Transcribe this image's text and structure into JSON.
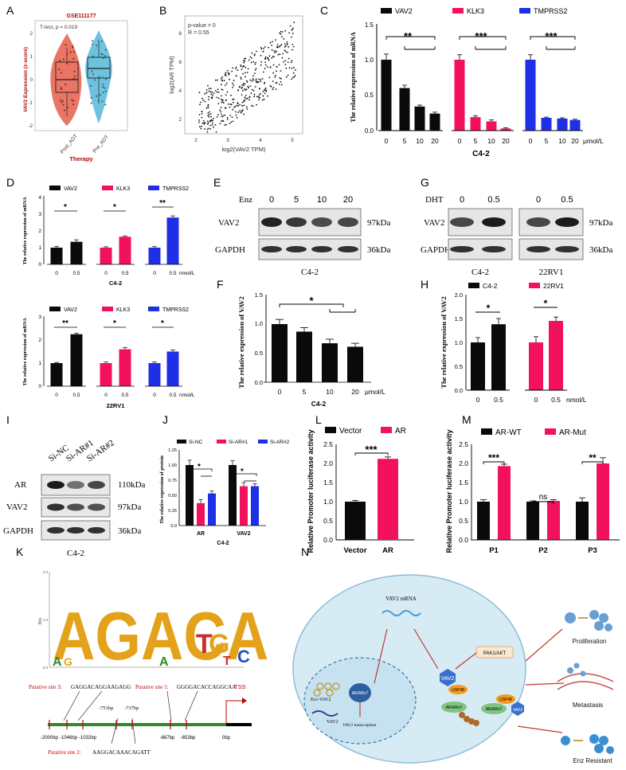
{
  "colors": {
    "black": "#0a0a0a",
    "pink": "#f2115f",
    "blue": "#1f2fe6",
    "violin_red": "#e3523f",
    "violin_blue": "#4ab3d6",
    "green_bar": "#2d8a25",
    "cell_fill": "#d7ebf5",
    "gse_red": "#c00000"
  },
  "panel_labels": [
    "A",
    "B",
    "C",
    "D",
    "E",
    "F",
    "G",
    "H",
    "I",
    "J",
    "K",
    "L",
    "M",
    "N"
  ],
  "panelA": {
    "gse": "GSE111177",
    "test": "T-test, p = 0.019",
    "ylabel": "VAV2 Expression (z-score)",
    "xlabel": "Therapy",
    "groups": [
      "Post_ADT",
      "Pre_ADT"
    ],
    "yticks": [
      "-2",
      "-1",
      "0",
      "1",
      "2"
    ]
  },
  "panelB": {
    "stat1": "p-value = 0",
    "stat2": "R = 0.55",
    "xlabel": "log2(VAV2 TPM)",
    "ylabel": "log2(AR TPM)",
    "xticks": [
      "2",
      "3",
      "4",
      "5"
    ],
    "yticks": [
      "2",
      "4",
      "6",
      "8"
    ]
  },
  "panelC": {
    "ylabel": "The relative expression of mRNA",
    "legend": [
      "VAV2",
      "KLK3",
      "TMPRSS2"
    ],
    "doses": [
      "0",
      "5",
      "10",
      "20"
    ],
    "unit": "μmol/L",
    "cell": "C4-2",
    "yticks": [
      "0.0",
      "0.5",
      "1.0",
      "1.5"
    ],
    "sig": [
      "**",
      "***",
      "***"
    ]
  },
  "panelD": {
    "ylabel": "The relative expression of mRNA",
    "legend": [
      "VAV2",
      "KLK3",
      "TMPRSS2"
    ],
    "doses": [
      "0",
      "0.5"
    ],
    "unit": "nmol/L",
    "top_cell": "C4-2",
    "bottom_cell": "22RV1",
    "top_yticks": [
      "0",
      "1",
      "2",
      "3",
      "4"
    ],
    "bottom_yticks": [
      "0",
      "1",
      "2",
      "3"
    ],
    "top_sig": [
      "*",
      "*",
      "**"
    ],
    "bottom_sig": [
      "**",
      "*",
      "*"
    ]
  },
  "panelE": {
    "enz": "Enz",
    "doses": [
      "0",
      "5",
      "10",
      "20"
    ],
    "rows": [
      "VAV2",
      "GAPDH"
    ],
    "kda": [
      "97kDa",
      "36kDa"
    ],
    "cell": "C4-2"
  },
  "panelF": {
    "ylabel": "The relative expression of VAV2",
    "doses": [
      "0",
      "5",
      "10",
      "20"
    ],
    "unit": "μmol/L",
    "cell": "C4-2",
    "yticks": [
      "0.0",
      "0.5",
      "1.0",
      "1.5"
    ],
    "sig": "*"
  },
  "panelG": {
    "dht": "DHT",
    "doses": [
      "0",
      "0.5",
      "0",
      "0.5"
    ],
    "rows": [
      "VAV2",
      "GAPDH"
    ],
    "kda": [
      "97kDa",
      "36kDa"
    ],
    "cells": [
      "C4-2",
      "22RV1"
    ]
  },
  "panelH": {
    "ylabel": "The relative expression of VAV2",
    "legend": [
      "C4-2",
      "22RV1"
    ],
    "doses": [
      "0",
      "0.5",
      "0",
      "0.5"
    ],
    "unit": "nmol/L",
    "yticks": [
      "0.0",
      "0.5",
      "1.0",
      "1.5",
      "2.0"
    ],
    "sig": [
      "*",
      "*"
    ]
  },
  "panelI": {
    "lanes": [
      "Si-NC",
      "Si-AR#1",
      "Si-AR#2"
    ],
    "rows": [
      "AR",
      "VAV2",
      "GAPDH"
    ],
    "kda": [
      "110kDa",
      "97kDa",
      "36kDa"
    ],
    "cell": "C4-2"
  },
  "panelJ": {
    "ylabel": "The relative expression of protein",
    "legend": [
      "Si-NC",
      "Si-AR#1",
      "Si-AR#2"
    ],
    "groups": [
      "AR",
      "VAV2"
    ],
    "cell": "C4-2",
    "yticks": [
      "0.0",
      "0.25",
      "0.50",
      "0.75",
      "1.00",
      "1.25"
    ],
    "sig": [
      "*",
      "*"
    ]
  },
  "panelL": {
    "ylabel": "Relative Promoter luciferase activity",
    "legend": [
      "Vector",
      "AR"
    ],
    "categories": [
      "Vector",
      "AR"
    ],
    "yticks": [
      "0.0",
      "0.5",
      "1.0",
      "1.5",
      "2.0",
      "2.5"
    ],
    "sig": "***"
  },
  "panelM": {
    "ylabel": "Relative Promoter luciferase activity",
    "legend": [
      "AR-WT",
      "AR-Mut"
    ],
    "categories": [
      "P1",
      "P2",
      "P3"
    ],
    "yticks": [
      "0.0",
      "0.5",
      "1.0",
      "1.5",
      "2.0",
      "2.5"
    ],
    "sig": [
      "***",
      "ns",
      "**"
    ]
  },
  "panelK": {
    "ylabel": "Bits",
    "yticks": [
      "0.0",
      "1.0",
      "2.0"
    ],
    "motif_letters": "AGACA",
    "site3": "Putative site 3:",
    "site3_seq": "GAGGACAGGAAGAGG",
    "site1": "Putative site 1:",
    "site1_seq": "GGGGACACCAGGCAA",
    "site2": "Putative site 2:",
    "site2_seq": "AAGGACAAACAGATT",
    "tss": "TSS",
    "positions_top": [
      "-751bp",
      "-737bp"
    ],
    "positions_bottom": [
      "-2000bp",
      "-1046bp",
      "-1032bp",
      "-667bp",
      "-653bp",
      "0bp"
    ]
  },
  "panelN": {
    "mrna": "VAV2 mRNA",
    "pak": "PAK1/AKT",
    "ecc": "Ecc-VAV2",
    "arv": "AR/ARv7",
    "vav2_small": "VAV2",
    "transcription": "VAV2 transcription",
    "vav2_node": "VAV2",
    "usp": "USP48",
    "outcomes": [
      "Proliferation",
      "Metastasis",
      "Enz Resistant"
    ]
  },
  "chart_data": [
    {
      "panel": "C",
      "type": "bar",
      "title": "",
      "xlabel": "C4-2 (μmol/L)",
      "ylabel": "The relative expression of mRNA",
      "ylim": [
        0,
        1.5
      ],
      "categories": [
        "0",
        "5",
        "10",
        "20"
      ],
      "series": [
        {
          "name": "VAV2",
          "values": [
            1.0,
            0.6,
            0.34,
            0.24
          ],
          "errors": [
            0.08,
            0.04,
            0.02,
            0.02
          ]
        },
        {
          "name": "KLK3",
          "values": [
            1.0,
            0.19,
            0.13,
            0.03
          ],
          "errors": [
            0.07,
            0.02,
            0.02,
            0.01
          ]
        },
        {
          "name": "TMPRSS2",
          "values": [
            1.0,
            0.18,
            0.17,
            0.15
          ],
          "errors": [
            0.07,
            0.01,
            0.01,
            0.01
          ]
        }
      ]
    },
    {
      "panel": "D-top",
      "type": "bar",
      "xlabel": "C4-2 (nmol/L)",
      "ylim": [
        0,
        4
      ],
      "categories": [
        "0",
        "0.5"
      ],
      "series": [
        {
          "name": "VAV2",
          "values": [
            1.0,
            1.35
          ],
          "errors": [
            0.08,
            0.12
          ]
        },
        {
          "name": "KLK3",
          "values": [
            1.0,
            1.65
          ],
          "errors": [
            0.05,
            0.05
          ]
        },
        {
          "name": "TMPRSS2",
          "values": [
            1.0,
            2.8
          ],
          "errors": [
            0.06,
            0.1
          ]
        }
      ]
    },
    {
      "panel": "D-bottom",
      "type": "bar",
      "xlabel": "22RV1 (nmol/L)",
      "ylim": [
        0,
        3
      ],
      "categories": [
        "0",
        "0.5"
      ],
      "series": [
        {
          "name": "VAV2",
          "values": [
            1.0,
            2.25
          ],
          "errors": [
            0.03,
            0.05
          ]
        },
        {
          "name": "KLK3",
          "values": [
            1.0,
            1.6
          ],
          "errors": [
            0.05,
            0.08
          ]
        },
        {
          "name": "TMPRSS2",
          "values": [
            1.0,
            1.5
          ],
          "errors": [
            0.05,
            0.07
          ]
        }
      ]
    },
    {
      "panel": "F",
      "type": "bar",
      "xlabel": "C4-2 (μmol/L)",
      "ylabel": "The relative expression of VAV2",
      "ylim": [
        0,
        1.5
      ],
      "categories": [
        "0",
        "5",
        "10",
        "20"
      ],
      "series": [
        {
          "name": "VAV2",
          "values": [
            1.0,
            0.87,
            0.67,
            0.61
          ],
          "errors": [
            0.08,
            0.07,
            0.07,
            0.06
          ]
        }
      ]
    },
    {
      "panel": "H",
      "type": "bar",
      "xlabel": "nmol/L",
      "ylabel": "The relative expression of VAV2",
      "ylim": [
        0,
        2.0
      ],
      "categories": [
        "0",
        "0.5"
      ],
      "series": [
        {
          "name": "C4-2",
          "values": [
            1.0,
            1.38
          ],
          "errors": [
            0.1,
            0.12
          ]
        },
        {
          "name": "22RV1",
          "values": [
            1.0,
            1.45
          ],
          "errors": [
            0.12,
            0.08
          ]
        }
      ]
    },
    {
      "panel": "J",
      "type": "bar",
      "xlabel": "C4-2",
      "ylabel": "The relative expression of protein",
      "ylim": [
        0,
        1.25
      ],
      "categories": [
        "AR",
        "VAV2"
      ],
      "series": [
        {
          "name": "Si-NC",
          "values": [
            1.0,
            1.0
          ],
          "errors": [
            0.08,
            0.07
          ]
        },
        {
          "name": "Si-AR#1",
          "values": [
            0.37,
            0.65
          ],
          "errors": [
            0.06,
            0.06
          ]
        },
        {
          "name": "Si-AR#2",
          "values": [
            0.53,
            0.65
          ],
          "errors": [
            0.04,
            0.04
          ]
        }
      ]
    },
    {
      "panel": "L",
      "type": "bar",
      "ylabel": "Relative Promoter luciferase activity",
      "ylim": [
        0,
        2.5
      ],
      "categories": [
        "Vector",
        "AR"
      ],
      "series": [
        {
          "name": "luciferase",
          "values": [
            1.0,
            2.12
          ],
          "errors": [
            0.03,
            0.05
          ]
        }
      ]
    },
    {
      "panel": "M",
      "type": "bar",
      "ylabel": "Relative Promoter luciferase activity",
      "ylim": [
        0,
        2.5
      ],
      "categories": [
        "P1",
        "P2",
        "P3"
      ],
      "series": [
        {
          "name": "AR-WT",
          "values": [
            1.0,
            1.0,
            1.0
          ],
          "errors": [
            0.05,
            0.02,
            0.1
          ]
        },
        {
          "name": "AR-Mut",
          "values": [
            1.93,
            1.02,
            2.0
          ],
          "errors": [
            0.05,
            0.03,
            0.15
          ]
        }
      ]
    }
  ]
}
